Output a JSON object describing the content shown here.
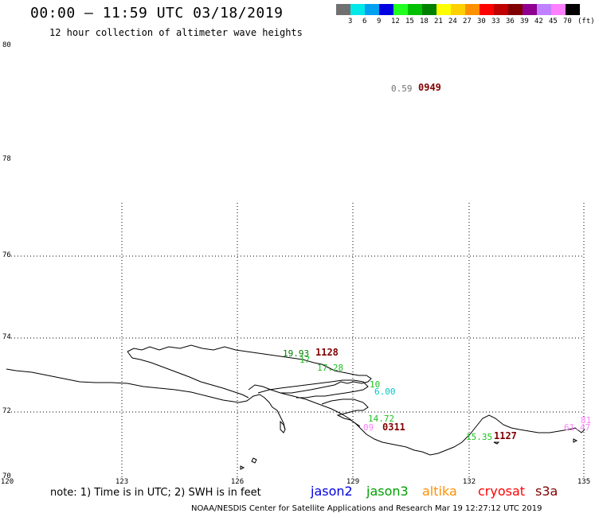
{
  "header": {
    "title": "00:00 – 11:59 UTC 03/18/2019",
    "subtitle": "12 hour collection of altimeter wave heights"
  },
  "colorbar": {
    "colors": [
      "#707070",
      "#00e8e8",
      "#00a0f0",
      "#0000e0",
      "#20ff20",
      "#00c000",
      "#008000",
      "#ffff00",
      "#ffd000",
      "#ff9000",
      "#ff0000",
      "#c00000",
      "#800000",
      "#900090",
      "#c080ff",
      "#ff80ff",
      "#000000"
    ],
    "labels": [
      "3",
      "6",
      "9",
      "12",
      "15",
      "18",
      "21",
      "24",
      "27",
      "30",
      "33",
      "36",
      "39",
      "42",
      "45",
      "70",
      "(ft)"
    ]
  },
  "axes": {
    "lat_labels": [
      "80",
      "78",
      "76",
      "74",
      "72",
      "70"
    ],
    "lon_labels": [
      "120",
      "123",
      "126",
      "129",
      "132",
      "135"
    ]
  },
  "observations": {
    "o1": {
      "text": "0.59",
      "color": "#707070"
    },
    "o2": {
      "text": "19.93",
      "color": "#008000"
    },
    "o3": {
      "text": "17.28",
      "color": "#20c020"
    },
    "o4": {
      "text": "17",
      "color": "#20c020"
    },
    "o5": {
      "text": "6.00",
      "color": "#00c8c8"
    },
    "o6": {
      "text": "10",
      "color": "#20c020"
    },
    "o7": {
      "text": "14.72",
      "color": "#20c020"
    },
    "o8": {
      "text": "09",
      "color": "#ff80ff"
    },
    "o9": {
      "text": "15.35",
      "color": "#20c020"
    },
    "o10": {
      "text": "61.47",
      "color": "#ff80ff"
    },
    "o11": {
      "text": "81",
      "color": "#ff80ff"
    }
  },
  "passes": {
    "p1": {
      "text": "0949",
      "color": "#800000"
    },
    "p2": {
      "text": "1128",
      "color": "#800000"
    },
    "p3": {
      "text": "0311",
      "color": "#800000"
    },
    "p4": {
      "text": "1127",
      "color": "#800000"
    }
  },
  "footer": {
    "note": "note: 1) Time is in UTC; 2) SWH is in feet",
    "legend": [
      {
        "name": "jason2",
        "color": "#0000e0"
      },
      {
        "name": "jason3",
        "color": "#00a000"
      },
      {
        "name": "altika",
        "color": "#ff9000"
      },
      {
        "name": "cryosat",
        "color": "#ff0000"
      },
      {
        "name": "s3a",
        "color": "#800000"
      }
    ],
    "credit": "NOAA/NESDIS Center for Satellite Applications and Research   Mar 19 12:27:12 UTC 2019"
  }
}
